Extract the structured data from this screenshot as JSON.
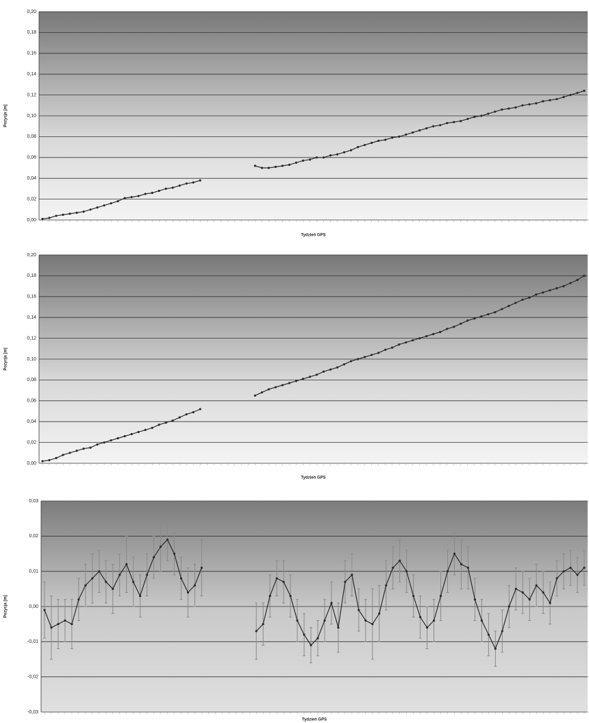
{
  "chart_data": [
    {
      "type": "line",
      "y_label": "Pozycja [m]",
      "x_label": "Tydzień GPS",
      "color": "#2a2a2a",
      "grid": true,
      "ylim": [
        0,
        0.2
      ],
      "yticks": [
        {
          "value": 0,
          "label": "0,00"
        },
        {
          "value": 0.02,
          "label": "0,02"
        },
        {
          "value": 0.04,
          "label": "0,04"
        },
        {
          "value": 0.06,
          "label": "0,06"
        },
        {
          "value": 0.08,
          "label": "0,08"
        },
        {
          "value": 0.1,
          "label": "0,10"
        },
        {
          "value": 0.12,
          "label": "0,12"
        },
        {
          "value": 0.14,
          "label": "0,14"
        },
        {
          "value": 0.16,
          "label": "0,16"
        },
        {
          "value": 0.18,
          "label": "0,18"
        },
        {
          "value": 0.2,
          "label": "0,20"
        }
      ],
      "values": [
        0.001,
        0.002,
        0.004,
        0.005,
        0.006,
        0.007,
        0.008,
        0.01,
        0.012,
        0.014,
        0.016,
        0.018,
        0.021,
        0.022,
        0.023,
        0.025,
        0.026,
        0.028,
        0.03,
        0.031,
        0.033,
        0.035,
        0.036,
        0.038,
        null,
        null,
        null,
        null,
        null,
        null,
        null,
        0.052,
        0.05,
        0.05,
        0.051,
        0.052,
        0.053,
        0.055,
        0.057,
        0.058,
        0.06,
        0.06,
        0.062,
        0.063,
        0.065,
        0.067,
        0.07,
        0.072,
        0.074,
        0.076,
        0.077,
        0.079,
        0.08,
        0.082,
        0.084,
        0.086,
        0.088,
        0.09,
        0.091,
        0.093,
        0.094,
        0.095,
        0.097,
        0.099,
        0.1,
        0.102,
        0.104,
        0.106,
        0.107,
        0.108,
        0.11,
        0.111,
        0.112,
        0.114,
        0.115,
        0.116,
        0.118,
        0.12,
        0.122,
        0.124
      ]
    },
    {
      "type": "line",
      "y_label": "Pozycja [m]",
      "x_label": "Tydzień GPS",
      "color": "#2a2a2a",
      "grid": true,
      "ylim": [
        0,
        0.2
      ],
      "yticks": [
        {
          "value": 0,
          "label": "0,00"
        },
        {
          "value": 0.02,
          "label": "0,02"
        },
        {
          "value": 0.04,
          "label": "0,04"
        },
        {
          "value": 0.06,
          "label": "0,06"
        },
        {
          "value": 0.08,
          "label": "0,08"
        },
        {
          "value": 0.1,
          "label": "0,10"
        },
        {
          "value": 0.12,
          "label": "0,12"
        },
        {
          "value": 0.14,
          "label": "0,14"
        },
        {
          "value": 0.16,
          "label": "0,16"
        },
        {
          "value": 0.18,
          "label": "0,18"
        },
        {
          "value": 0.2,
          "label": "0,20"
        }
      ],
      "values": [
        0.002,
        0.003,
        0.005,
        0.008,
        0.01,
        0.012,
        0.014,
        0.015,
        0.018,
        0.02,
        0.022,
        0.024,
        0.026,
        0.028,
        0.03,
        0.032,
        0.034,
        0.037,
        0.039,
        0.041,
        0.044,
        0.047,
        0.049,
        0.052,
        null,
        null,
        null,
        null,
        null,
        null,
        null,
        0.065,
        0.068,
        0.071,
        0.073,
        0.075,
        0.077,
        0.079,
        0.081,
        0.083,
        0.085,
        0.088,
        0.09,
        0.092,
        0.095,
        0.098,
        0.1,
        0.102,
        0.104,
        0.106,
        0.109,
        0.111,
        0.114,
        0.116,
        0.118,
        0.12,
        0.122,
        0.124,
        0.126,
        0.129,
        0.131,
        0.134,
        0.137,
        0.139,
        0.141,
        0.143,
        0.145,
        0.148,
        0.151,
        0.154,
        0.157,
        0.159,
        0.162,
        0.164,
        0.166,
        0.168,
        0.17,
        0.173,
        0.176,
        0.18
      ]
    },
    {
      "type": "line",
      "y_label": "Pozycja [m]",
      "x_label": "Tydzień GPS",
      "color": "#2a2a2a",
      "error_color": "#8a8a8a",
      "grid": true,
      "ylim": [
        -0.03,
        0.03
      ],
      "yticks": [
        {
          "value": -0.03,
          "label": "-0,03"
        },
        {
          "value": -0.02,
          "label": "-0,02"
        },
        {
          "value": -0.01,
          "label": "-0,01"
        },
        {
          "value": 0,
          "label": "0,00"
        },
        {
          "value": 0.01,
          "label": "0,01"
        },
        {
          "value": 0.02,
          "label": "0,02"
        },
        {
          "value": 0.03,
          "label": "0,03"
        }
      ],
      "values": [
        -0.001,
        -0.006,
        -0.005,
        -0.004,
        -0.005,
        0.002,
        0.006,
        0.008,
        0.01,
        0.007,
        0.005,
        0.009,
        0.012,
        0.007,
        0.003,
        0.009,
        0.014,
        0.017,
        0.019,
        0.015,
        0.008,
        0.004,
        0.006,
        0.011,
        null,
        null,
        null,
        null,
        null,
        null,
        null,
        -0.007,
        -0.005,
        0.003,
        0.008,
        0.007,
        0.003,
        -0.004,
        -0.008,
        -0.011,
        -0.009,
        -0.004,
        0.001,
        -0.006,
        0.007,
        0.009,
        -0.001,
        -0.004,
        -0.005,
        -0.002,
        0.006,
        0.011,
        0.013,
        0.01,
        0.003,
        -0.003,
        -0.006,
        -0.004,
        0.003,
        0.01,
        0.015,
        0.012,
        0.011,
        0.002,
        -0.004,
        -0.008,
        -0.012,
        -0.007,
        0.0,
        0.005,
        0.004,
        0.002,
        0.006,
        0.004,
        0.001,
        0.008,
        0.01,
        0.011,
        0.009,
        0.011
      ],
      "errors": [
        0.008,
        0.009,
        0.007,
        0.006,
        0.007,
        0.006,
        0.006,
        0.007,
        0.006,
        0.006,
        0.007,
        0.006,
        0.008,
        0.007,
        0.006,
        0.006,
        0.006,
        0.007,
        0.006,
        0.006,
        0.006,
        0.007,
        0.006,
        0.008,
        null,
        null,
        null,
        null,
        null,
        null,
        null,
        0.008,
        0.006,
        0.006,
        0.005,
        0.006,
        0.006,
        0.006,
        0.006,
        0.005,
        0.005,
        0.006,
        0.006,
        0.007,
        0.006,
        0.006,
        0.006,
        0.006,
        0.01,
        0.008,
        0.007,
        0.006,
        0.006,
        0.006,
        0.006,
        0.006,
        0.006,
        0.006,
        0.007,
        0.006,
        0.006,
        0.007,
        0.006,
        0.006,
        0.006,
        0.006,
        0.005,
        0.006,
        0.006,
        0.006,
        0.006,
        0.006,
        0.006,
        0.006,
        0.006,
        0.005,
        0.005,
        0.005,
        0.005,
        0.005
      ]
    }
  ]
}
